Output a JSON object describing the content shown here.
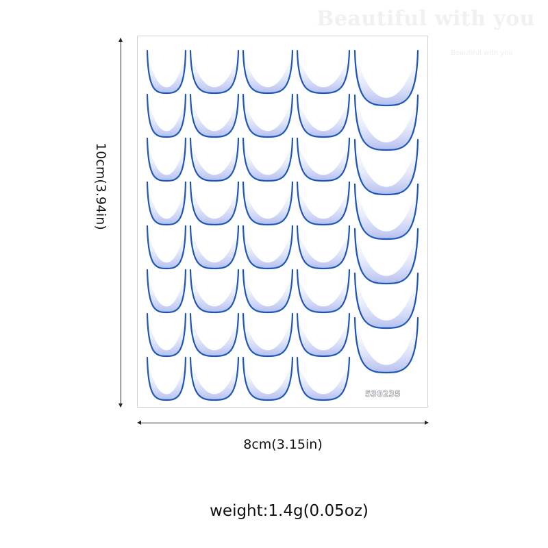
{
  "watermark": {
    "large_text": "Beautiful with you",
    "small_text": "Beautiful with you"
  },
  "sheet": {
    "product_code": "530235",
    "rows": 8,
    "columns": 5,
    "tip_line_color": "#1e56b8",
    "tip_fill_color": "#b4bff0",
    "last_column_items": 7
  },
  "dimensions": {
    "height_label": "10cm(3.94in)",
    "width_label": "8cm(3.15in)"
  },
  "weight_label": "weight:1.4g(0.05oz)"
}
